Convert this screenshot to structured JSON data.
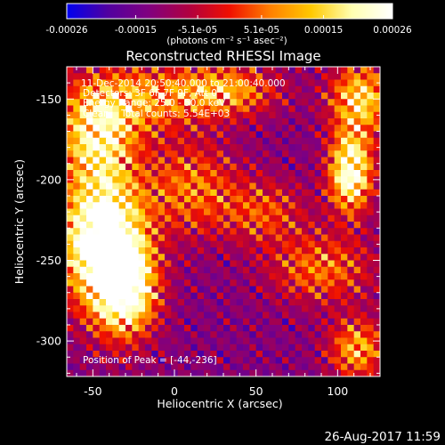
{
  "chart_data": {
    "type": "heatmap",
    "title": "Reconstructed RHESSI Image",
    "xlabel": "Heliocentric X (arcsec)",
    "ylabel": "Heliocentric Y (arcsec)",
    "xlim": [
      -66,
      126
    ],
    "ylim": [
      -322,
      -130
    ],
    "x_ticks": [
      -50,
      0,
      50,
      100
    ],
    "y_ticks": [
      -150,
      -200,
      -250,
      -300
    ],
    "grid": false,
    "colorbar": {
      "range": [
        -0.00026,
        0.00026
      ],
      "tick_values": [
        -0.00026,
        -0.00015,
        -5.1e-05,
        5.1e-05,
        0.00015,
        0.00026
      ],
      "tick_labels": [
        "-0.00026",
        "-0.00015",
        "-5.1e-05",
        "5.1e-05",
        "0.00015",
        "0.00026"
      ],
      "unit_label": "(photons cm⁻² s⁻¹ asec⁻²)",
      "colors": [
        "#0000f0",
        "#5000a0",
        "#800080",
        "#b00040",
        "#f01000",
        "#ff8000",
        "#ffc800",
        "#ffffb0",
        "#ffffff"
      ]
    },
    "annotations": [
      "11-Dec-2014 20:50:40.000 to 21:00:40.000",
      "Detectors: 3F 6F 7F 9F, Att 0",
      "Energy Range: 25.0 - 50.0 keV",
      "Clean    Total counts: 5.54E+03"
    ],
    "peak": {
      "label": "Position of Peak = [-44,-236]",
      "x": -44,
      "y": -236
    },
    "intensity_model": {
      "note": "approximate reading of the reconstructed brightness distribution; values are normalized intensity 0..1",
      "sources": [
        {
          "x": -44,
          "y": -236,
          "sx": 17,
          "sy": 28,
          "peak": 1.0
        },
        {
          "x": -30,
          "y": -268,
          "sx": 13,
          "sy": 20,
          "peak": 0.72
        },
        {
          "x": -48,
          "y": -175,
          "sx": 16,
          "sy": 18,
          "peak": 0.52
        },
        {
          "x": -28,
          "y": -150,
          "sx": 28,
          "sy": 15,
          "peak": 0.42
        },
        {
          "x": 108,
          "y": -195,
          "sx": 9,
          "sy": 17,
          "peak": 0.78
        },
        {
          "x": 114,
          "y": -150,
          "sx": 13,
          "sy": 15,
          "peak": 0.55
        },
        {
          "x": 30,
          "y": -145,
          "sx": 22,
          "sy": 11,
          "peak": 0.45
        },
        {
          "x": 90,
          "y": -255,
          "sx": 22,
          "sy": 15,
          "peak": 0.35
        },
        {
          "x": 112,
          "y": -305,
          "sx": 12,
          "sy": 13,
          "peak": 0.45
        },
        {
          "x": 10,
          "y": -205,
          "sx": 20,
          "sy": 20,
          "peak": 0.35
        },
        {
          "x": 55,
          "y": -220,
          "sx": 18,
          "sy": 14,
          "peak": 0.28
        }
      ],
      "background": 0.26,
      "ripple_amplitude": 0.17,
      "ripple_period_arcsec": 10
    }
  },
  "footer": {
    "timestamp": "26-Aug-2017 11:59"
  }
}
